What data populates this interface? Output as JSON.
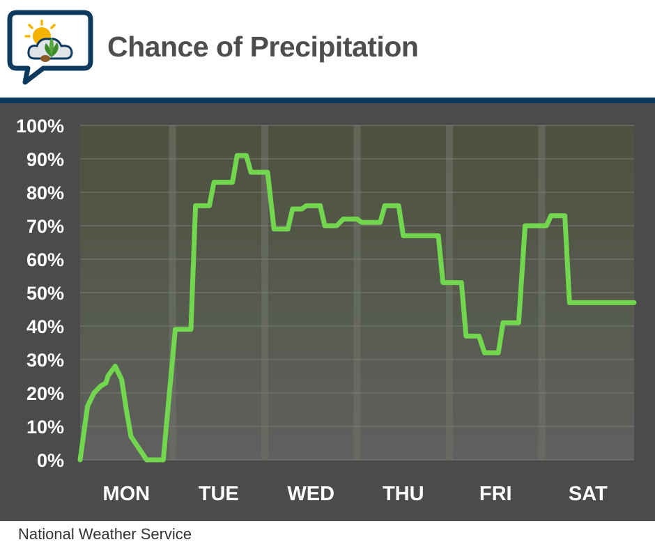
{
  "header": {
    "title": "Chance of Precipitation"
  },
  "footer": {
    "source": "National Weather Service"
  },
  "colors": {
    "line": "#72d64f",
    "rule": "#0c3a5e",
    "panel": "#4b4b4b",
    "title": "#4d4d4d"
  },
  "icons": [
    "speech-bubble-icon",
    "sun-icon",
    "cloud-icon",
    "leaf-icon"
  ],
  "chart_data": {
    "type": "line",
    "title": "Chance of Precipitation",
    "xlabel": "",
    "ylabel": "",
    "ylim": [
      0,
      100
    ],
    "yticks": [
      "0%",
      "10%",
      "20%",
      "30%",
      "40%",
      "50%",
      "60%",
      "70%",
      "80%",
      "90%",
      "100%"
    ],
    "categories": [
      "MON",
      "TUE",
      "WED",
      "THU",
      "FRI",
      "SAT"
    ],
    "xlim": [
      0,
      6
    ],
    "grid": true,
    "series": [
      {
        "x": [
          0,
          0.08,
          0.15,
          0.22,
          0.28,
          0.3,
          0.38,
          0.45,
          0.5,
          0.55,
          0.72,
          0.8,
          0.9,
          1.03,
          1.08,
          1.2,
          1.25,
          1.4,
          1.45,
          1.65,
          1.7,
          1.8,
          1.85,
          2.03,
          2.1,
          2.25,
          2.3,
          2.4,
          2.45,
          2.6,
          2.65,
          2.78,
          2.85,
          3.0,
          3.05,
          3.25,
          3.3,
          3.45,
          3.5,
          3.88,
          3.93,
          4.13,
          4.18,
          4.32,
          4.38,
          4.53,
          4.58,
          4.75,
          4.82,
          5.05,
          5.1,
          5.25,
          5.3,
          5.45,
          5.52,
          5.7,
          5.72,
          6.0
        ],
        "y": [
          0,
          16,
          20,
          22,
          23,
          25,
          28,
          24,
          15,
          7,
          0,
          0,
          0,
          39,
          39,
          39,
          76,
          76,
          83,
          83,
          91,
          91,
          86,
          86,
          69,
          69,
          75,
          75,
          76,
          76,
          70,
          70,
          72,
          72,
          71,
          71,
          76,
          76,
          67,
          67,
          53,
          53,
          37,
          37,
          32,
          32,
          41,
          41,
          70,
          70,
          73,
          73,
          47,
          47,
          47,
          47,
          47,
          47
        ]
      }
    ]
  }
}
